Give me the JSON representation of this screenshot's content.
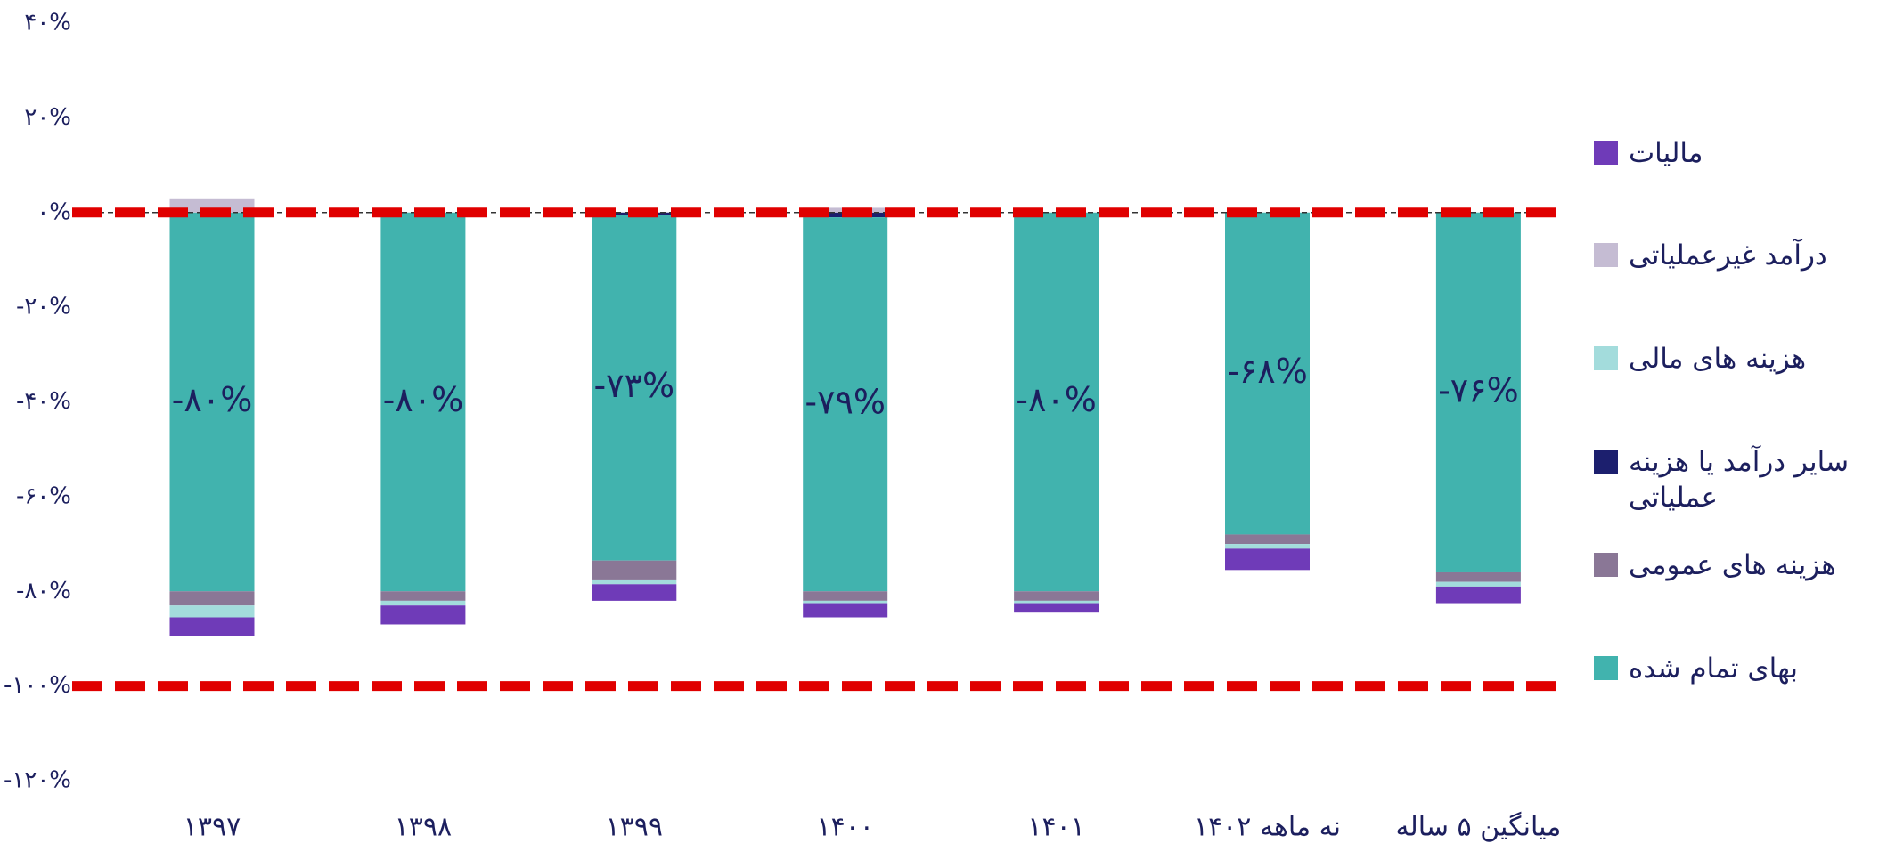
{
  "chart_data": {
    "type": "stacked_bar",
    "categories": [
      "۱۳۹۷",
      "۱۳۹۸",
      "۱۳۹۹",
      "۱۴۰۰",
      "۱۴۰۱",
      "نه ماهه ۱۴۰۲",
      "میانگین ۵ ساله"
    ],
    "series": [
      {
        "name": "مالیات",
        "color": "#6f3bb8",
        "values": [
          -4,
          -4,
          -3.5,
          -3,
          -2,
          -4.5,
          -3.5
        ]
      },
      {
        "name": "درآمد غیرعملیاتی",
        "color": "#c5bcd3",
        "values": [
          3,
          0,
          0,
          1,
          0,
          0,
          0
        ]
      },
      {
        "name": "هزینه های مالی",
        "color": "#a3dcdc",
        "values": [
          -2.5,
          -1,
          -1,
          -0.5,
          -0.5,
          -1,
          -1
        ]
      },
      {
        "name": "سایر درآمد یا هزینه عملیاتی",
        "color": "#1c1f6e",
        "values": [
          0,
          0,
          -0.5,
          -1,
          0,
          0,
          0
        ]
      },
      {
        "name": "هزینه های عمومی",
        "color": "#8a7796",
        "values": [
          -3,
          -2,
          -4,
          -2,
          -2,
          -2,
          -2
        ]
      },
      {
        "name": "بهای تمام شده",
        "color": "#41b3ae",
        "values": [
          -80,
          -80,
          -73,
          -79,
          -80,
          -68,
          -76
        ],
        "value_labels": [
          "-۸۰%",
          "-۸۰%",
          "-۷۳%",
          "-۷۹%",
          "-۸۰%",
          "-۶۸%",
          "-۷۶%"
        ]
      }
    ],
    "ylim": [
      -120,
      40
    ],
    "yticks": [
      {
        "value": -120,
        "label": "-۱۲۰%"
      },
      {
        "value": -100,
        "label": "-۱۰۰%"
      },
      {
        "value": -80,
        "label": "-۸۰%"
      },
      {
        "value": -60,
        "label": "-۶۰%"
      },
      {
        "value": -40,
        "label": "-۴۰%"
      },
      {
        "value": -20,
        "label": "-۲۰%"
      },
      {
        "value": 0,
        "label": "۰%"
      },
      {
        "value": 20,
        "label": "۲۰%"
      },
      {
        "value": 40,
        "label": "۴۰%"
      }
    ],
    "reference_lines": [
      0,
      -100
    ],
    "reference_color": "#e00000"
  }
}
